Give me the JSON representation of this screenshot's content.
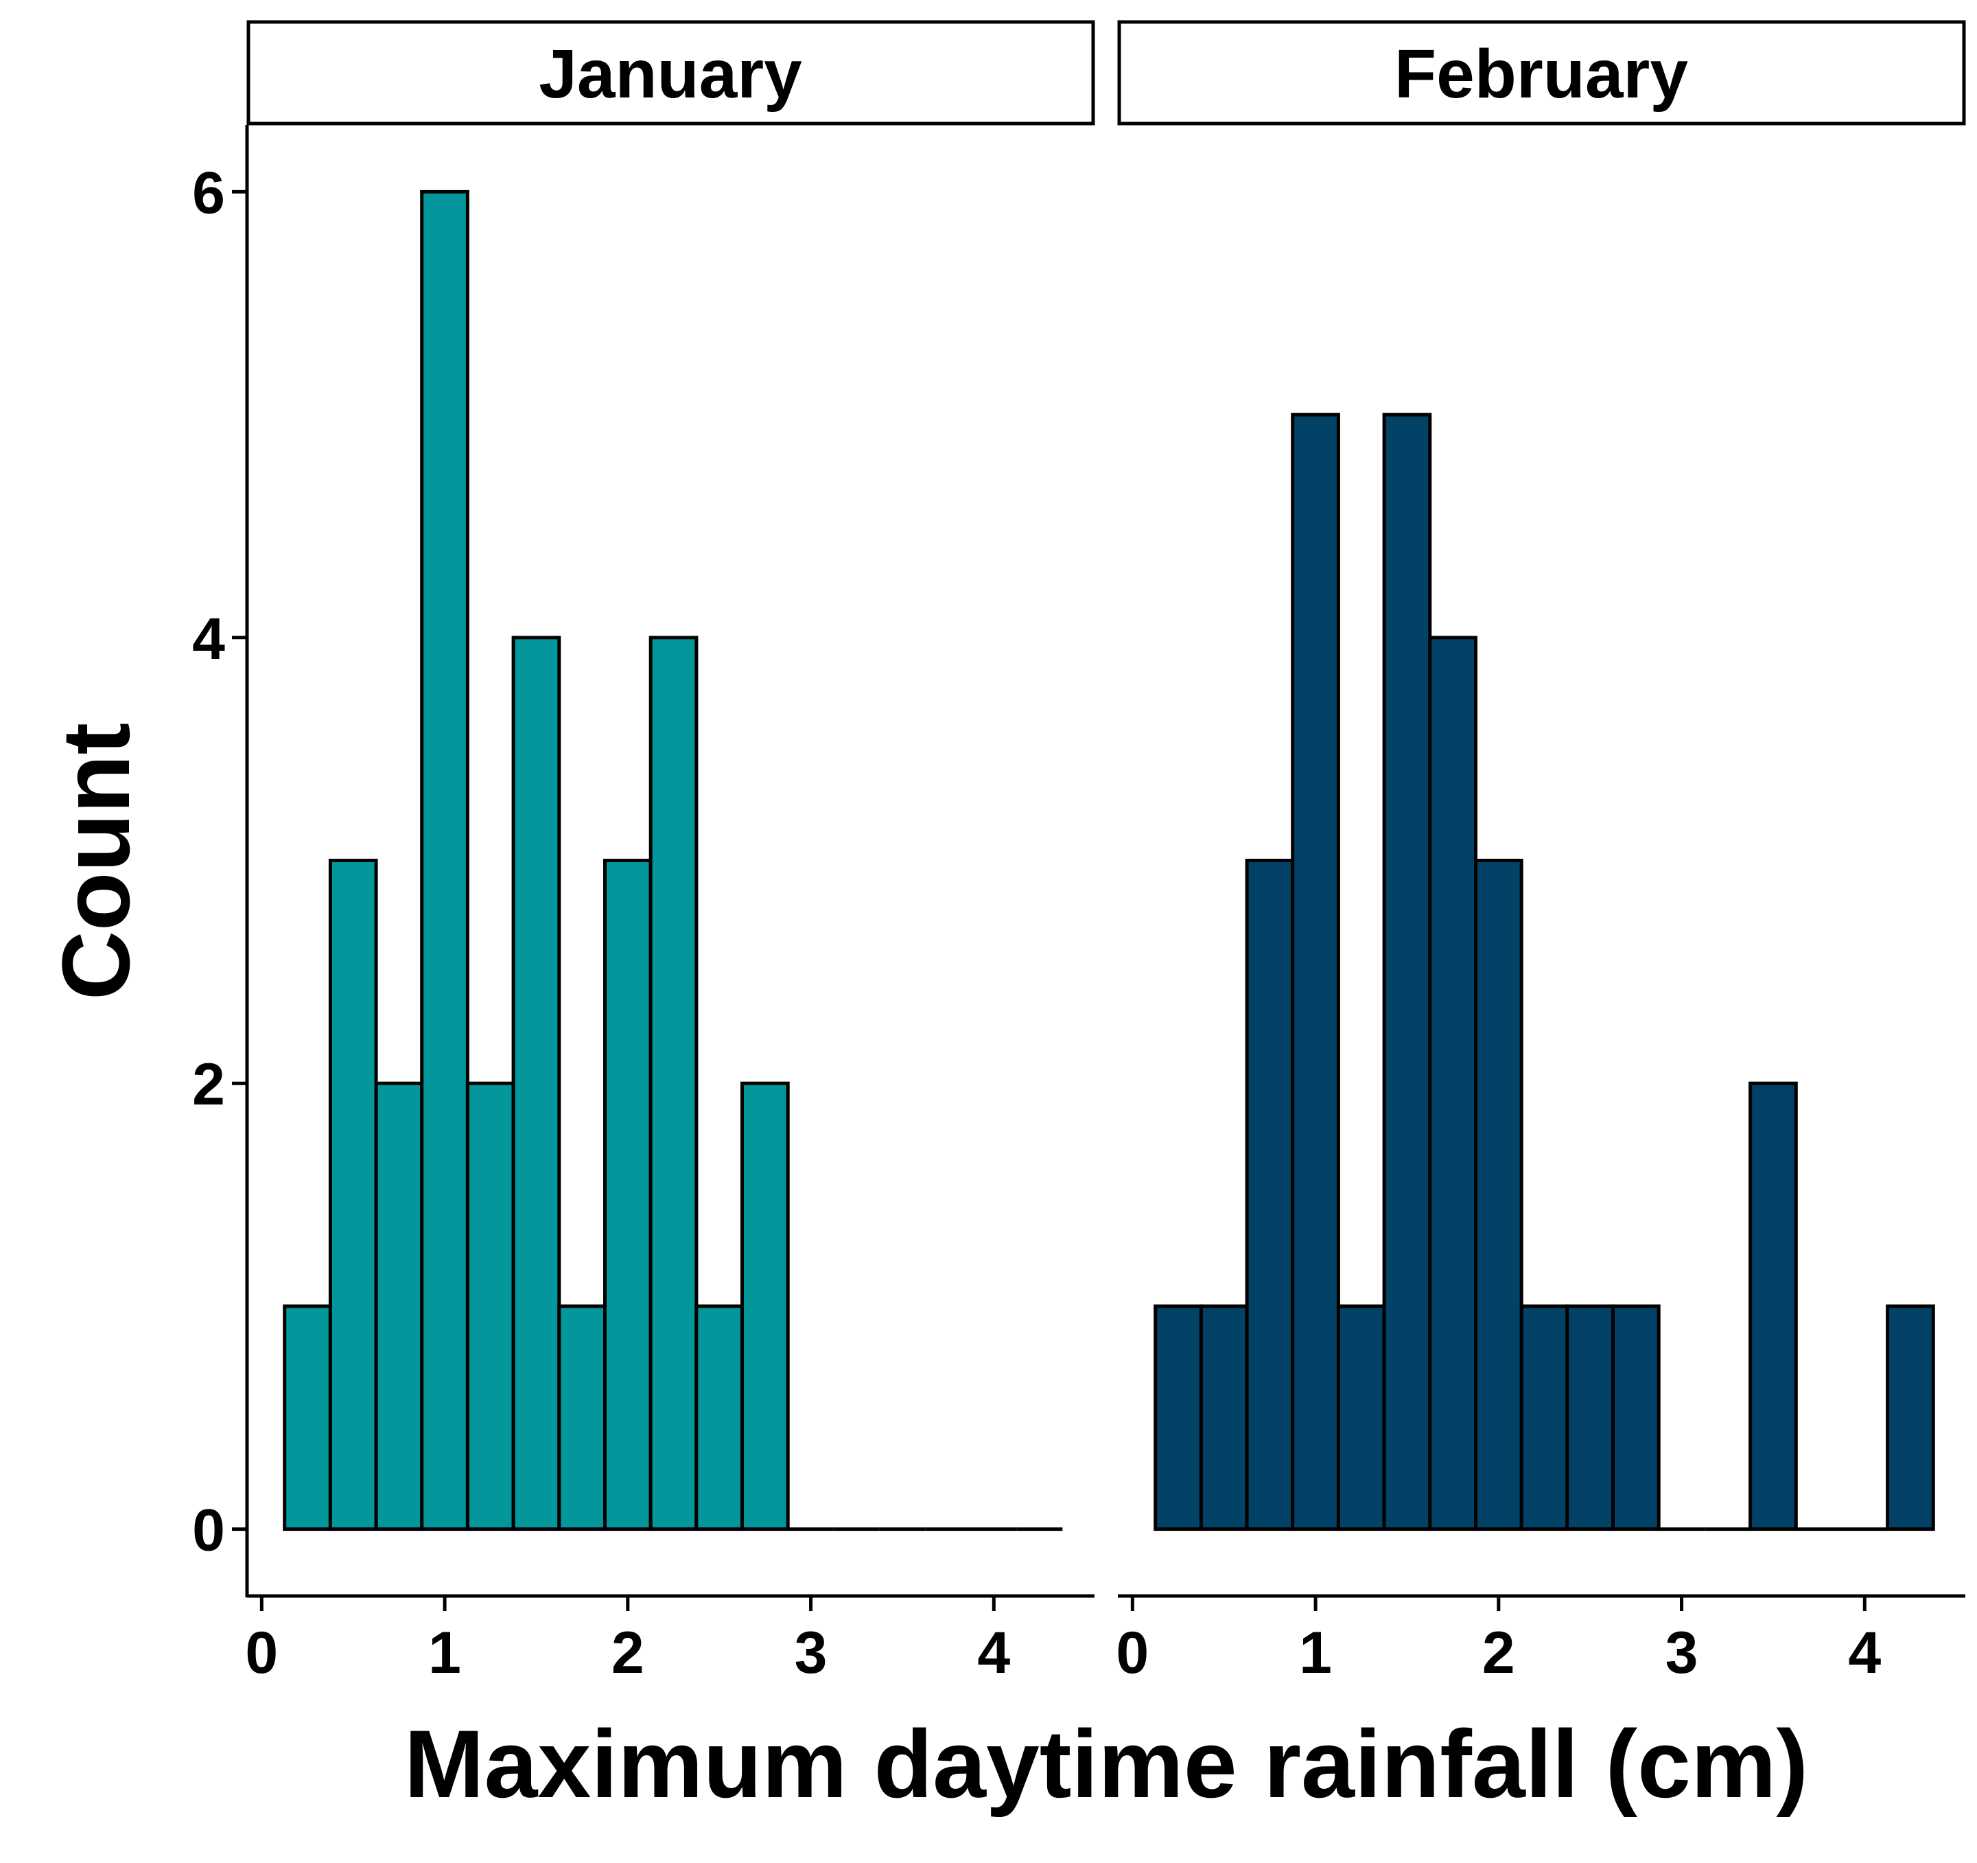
{
  "chart_data": {
    "type": "bar",
    "xlabel": "Maximum daytime rainfall (cm)",
    "ylabel": "Count",
    "xlim": [
      -0.08,
      4.55
    ],
    "ylim": [
      -0.3,
      6.3
    ],
    "x_ticks": [
      0,
      1,
      2,
      3,
      4
    ],
    "y_ticks": [
      0,
      2,
      4,
      6
    ],
    "bin_width": 0.25,
    "bin_start": 0.125,
    "grid": false,
    "legend": "none",
    "panels": [
      {
        "name": "January",
        "color": "#03969B",
        "counts": [
          1,
          3,
          2,
          6,
          2,
          4,
          1,
          3,
          4,
          1,
          2,
          0,
          0,
          0,
          0,
          0,
          0
        ]
      },
      {
        "name": "February",
        "color": "#024266",
        "counts": [
          1,
          1,
          3,
          5,
          1,
          5,
          4,
          3,
          1,
          1,
          1,
          0,
          0,
          2,
          0,
          0,
          1
        ]
      }
    ]
  }
}
